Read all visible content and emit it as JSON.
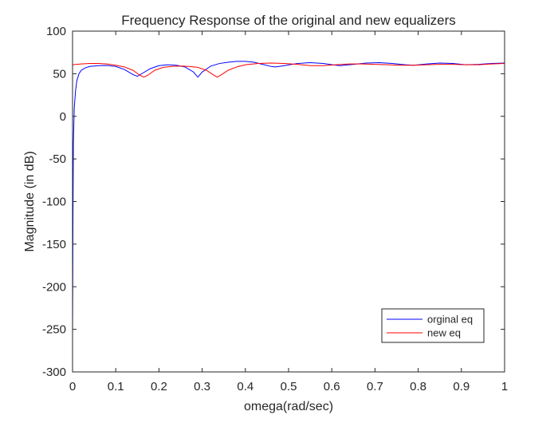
{
  "chart_data": {
    "type": "line",
    "title": "Frequency Response of the original and new equalizers",
    "xlabel": "omega(rad/sec)",
    "ylabel": "Magnitude (in dB)",
    "xlim": [
      0,
      1
    ],
    "ylim": [
      -300,
      100
    ],
    "xticks": [
      0,
      0.1,
      0.2,
      0.3,
      0.4,
      0.5,
      0.6,
      0.7,
      0.8,
      0.9,
      1
    ],
    "yticks": [
      100,
      50,
      0,
      -50,
      -100,
      -150,
      -200,
      -250,
      -300
    ],
    "grid": false,
    "legend_position": "bottom-right",
    "series": [
      {
        "name": "orginal eq",
        "color": "#0000ff",
        "x": [
          0.0,
          0.001,
          0.002,
          0.004,
          0.007,
          0.01,
          0.015,
          0.02,
          0.03,
          0.04,
          0.06,
          0.08,
          0.1,
          0.12,
          0.14,
          0.15,
          0.16,
          0.18,
          0.2,
          0.22,
          0.24,
          0.26,
          0.28,
          0.29,
          0.3,
          0.32,
          0.34,
          0.36,
          0.38,
          0.4,
          0.42,
          0.44,
          0.46,
          0.47,
          0.49,
          0.52,
          0.55,
          0.58,
          0.61,
          0.62,
          0.65,
          0.68,
          0.71,
          0.74,
          0.77,
          0.79,
          0.82,
          0.85,
          0.88,
          0.91,
          0.94,
          0.97,
          1.0
        ],
        "y": [
          -258,
          -120,
          -30,
          10,
          30,
          42,
          50,
          54,
          57,
          58.5,
          59.5,
          59.7,
          58.5,
          55,
          49,
          47,
          50,
          56,
          59.5,
          60.5,
          60,
          58,
          52,
          46,
          52,
          59,
          62,
          63.5,
          64.5,
          64.5,
          63.5,
          61,
          58.5,
          58,
          59.5,
          62,
          63,
          62,
          60,
          59.5,
          61,
          62.5,
          63,
          62,
          60.5,
          60,
          61.5,
          62.5,
          62,
          60.5,
          61,
          62,
          62.5
        ]
      },
      {
        "name": "new eq",
        "color": "#ff0000",
        "x": [
          0.0,
          0.02,
          0.04,
          0.06,
          0.08,
          0.1,
          0.12,
          0.14,
          0.155,
          0.165,
          0.175,
          0.19,
          0.21,
          0.23,
          0.25,
          0.27,
          0.29,
          0.31,
          0.325,
          0.335,
          0.345,
          0.36,
          0.38,
          0.4,
          0.43,
          0.46,
          0.49,
          0.52,
          0.55,
          0.58,
          0.61,
          0.64,
          0.67,
          0.7,
          0.73,
          0.76,
          0.79,
          0.82,
          0.85,
          0.88,
          0.91,
          0.94,
          0.97,
          1.0
        ],
        "y": [
          60.5,
          61.5,
          62,
          62,
          61.5,
          60,
          58,
          54,
          48.5,
          46,
          48.5,
          54,
          57.5,
          58.5,
          59,
          58.5,
          57.5,
          54,
          49,
          46,
          49,
          54,
          58,
          60.5,
          62,
          62.5,
          62,
          61,
          59.5,
          59.5,
          60.5,
          61.5,
          61.5,
          61,
          60.5,
          60,
          60,
          60.5,
          61,
          61,
          60.5,
          60.5,
          61.5,
          62
        ]
      }
    ]
  }
}
